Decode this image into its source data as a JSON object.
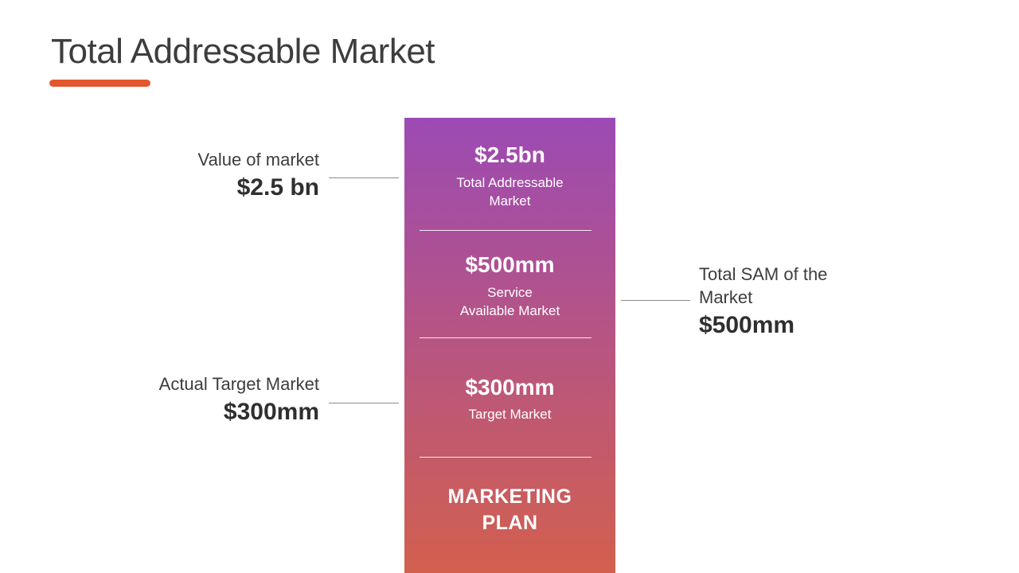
{
  "slide": {
    "title": "Total Addressable Market"
  },
  "colors": {
    "accent_underline": "#E2582E",
    "column_gradient_top": "#9C4AB4",
    "column_gradient_bottom": "#D2604E",
    "title_text": "#3D3D3D",
    "column_text": "#FFFFFF",
    "connector_line": "#8C8C8C"
  },
  "column": {
    "segments": [
      {
        "value": "$2.5bn",
        "label_lines": [
          "Total Addressable",
          "Market"
        ]
      },
      {
        "value": "$500mm",
        "label_lines": [
          "Service",
          "Available Market"
        ]
      },
      {
        "value": "$300mm",
        "label_lines": [
          "Target Market"
        ]
      }
    ],
    "footer_lines": [
      "MARKETING",
      "PLAN"
    ]
  },
  "callouts": {
    "value_of_market": {
      "label": "Value of market",
      "value": "$2.5 bn"
    },
    "actual_target_market": {
      "label": "Actual Target Market",
      "value": "$300mm"
    },
    "total_sam": {
      "label_lines": [
        "Total SAM of the",
        "Market"
      ],
      "value": "$500mm"
    }
  },
  "chart_data": {
    "type": "bar",
    "title": "Total Addressable Market",
    "categories": [
      "Total Addressable Market",
      "Service Available Market",
      "Target Market"
    ],
    "values": [
      2500,
      500,
      300
    ],
    "unit": "USD millions",
    "value_labels": [
      "$2.5bn",
      "$500mm",
      "$300mm"
    ],
    "annotations": [
      "Value of market $2.5 bn",
      "Total SAM of the Market $500mm",
      "Actual Target Market $300mm"
    ],
    "footer": "MARKETING PLAN",
    "legend": false,
    "orientation": "vertical-stacked-panel"
  }
}
